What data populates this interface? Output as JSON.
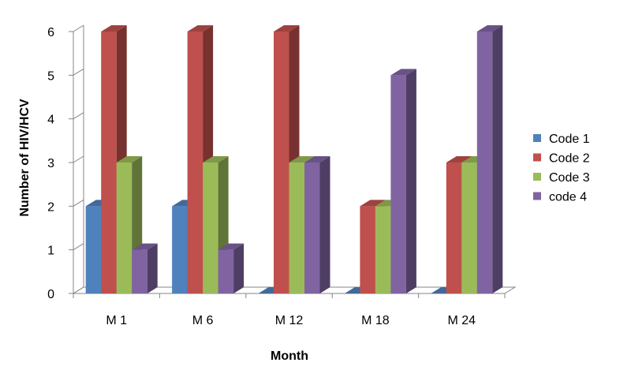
{
  "chart_data": {
    "type": "bar",
    "title": "",
    "xlabel": "Month",
    "ylabel": "Number of HIV/HCV",
    "ylim": [
      0,
      6
    ],
    "yticks": [
      "0",
      "1",
      "2",
      "3",
      "4",
      "5",
      "6"
    ],
    "categories": [
      "M 1",
      "M 6",
      "M 12",
      "M 18",
      "M 24"
    ],
    "series": [
      {
        "name": "Code 1",
        "values": [
          2,
          2,
          0,
          0,
          0
        ],
        "color": "#4F81BD"
      },
      {
        "name": "Code 2",
        "values": [
          6,
          6,
          6,
          2,
          3
        ],
        "color": "#C0504D"
      },
      {
        "name": "Code 3",
        "values": [
          3,
          3,
          3,
          2,
          3
        ],
        "color": "#9BBB59"
      },
      {
        "name": "code 4",
        "values": [
          1,
          1,
          3,
          5,
          6
        ],
        "color": "#8064A2"
      }
    ],
    "grid": false,
    "legend": "right",
    "style": "3d-clustered-column"
  }
}
